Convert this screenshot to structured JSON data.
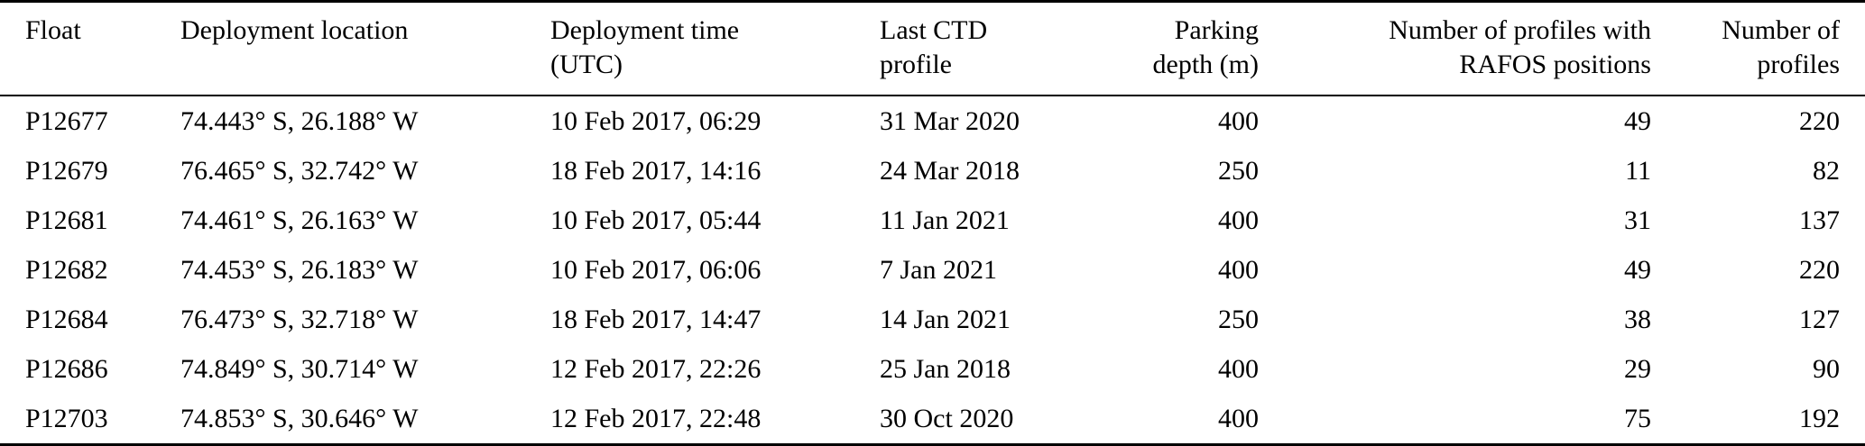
{
  "table": {
    "background": "#ffffff",
    "text_color": "#000000",
    "rule_color": "#000000",
    "columns": [
      {
        "key": "float",
        "label": "Float",
        "align": "left"
      },
      {
        "key": "deployment_location",
        "label": "Deployment location",
        "align": "left"
      },
      {
        "key": "deployment_time_utc",
        "label": "Deployment time (UTC)",
        "align": "left"
      },
      {
        "key": "last_ctd_profile",
        "label": "Last CTD profile",
        "align": "left"
      },
      {
        "key": "parking_depth_m",
        "label": "Parking depth (m)",
        "align": "right"
      },
      {
        "key": "profiles_with_rafos",
        "label": "Number of profiles with RAFOS positions",
        "align": "right"
      },
      {
        "key": "number_of_profiles",
        "label": "Number of profiles",
        "align": "right"
      }
    ],
    "rows": [
      {
        "float": "P12677",
        "deployment_location": "74.443° S, 26.188° W",
        "deployment_time_utc": "10 Feb 2017, 06:29",
        "last_ctd_profile": "31 Mar 2020",
        "parking_depth_m": "400",
        "profiles_with_rafos": "49",
        "number_of_profiles": "220"
      },
      {
        "float": "P12679",
        "deployment_location": "76.465° S, 32.742° W",
        "deployment_time_utc": "18 Feb 2017, 14:16",
        "last_ctd_profile": "24 Mar 2018",
        "parking_depth_m": "250",
        "profiles_with_rafos": "11",
        "number_of_profiles": "82"
      },
      {
        "float": "P12681",
        "deployment_location": "74.461° S, 26.163° W",
        "deployment_time_utc": "10 Feb 2017, 05:44",
        "last_ctd_profile": "11 Jan 2021",
        "parking_depth_m": "400",
        "profiles_with_rafos": "31",
        "number_of_profiles": "137"
      },
      {
        "float": "P12682",
        "deployment_location": "74.453° S, 26.183° W",
        "deployment_time_utc": "10 Feb 2017, 06:06",
        "last_ctd_profile": "7 Jan 2021",
        "parking_depth_m": "400",
        "profiles_with_rafos": "49",
        "number_of_profiles": "220"
      },
      {
        "float": "P12684",
        "deployment_location": "76.473° S, 32.718° W",
        "deployment_time_utc": "18 Feb 2017, 14:47",
        "last_ctd_profile": "14 Jan 2021",
        "parking_depth_m": "250",
        "profiles_with_rafos": "38",
        "number_of_profiles": "127"
      },
      {
        "float": "P12686",
        "deployment_location": "74.849° S, 30.714° W",
        "deployment_time_utc": "12 Feb 2017, 22:26",
        "last_ctd_profile": "25 Jan 2018",
        "parking_depth_m": "400",
        "profiles_with_rafos": "29",
        "number_of_profiles": "90"
      },
      {
        "float": "P12703",
        "deployment_location": "74.853° S, 30.646° W",
        "deployment_time_utc": "12 Feb 2017, 22:48",
        "last_ctd_profile": "30 Oct 2020",
        "parking_depth_m": "400",
        "profiles_with_rafos": "75",
        "number_of_profiles": "192"
      }
    ]
  }
}
